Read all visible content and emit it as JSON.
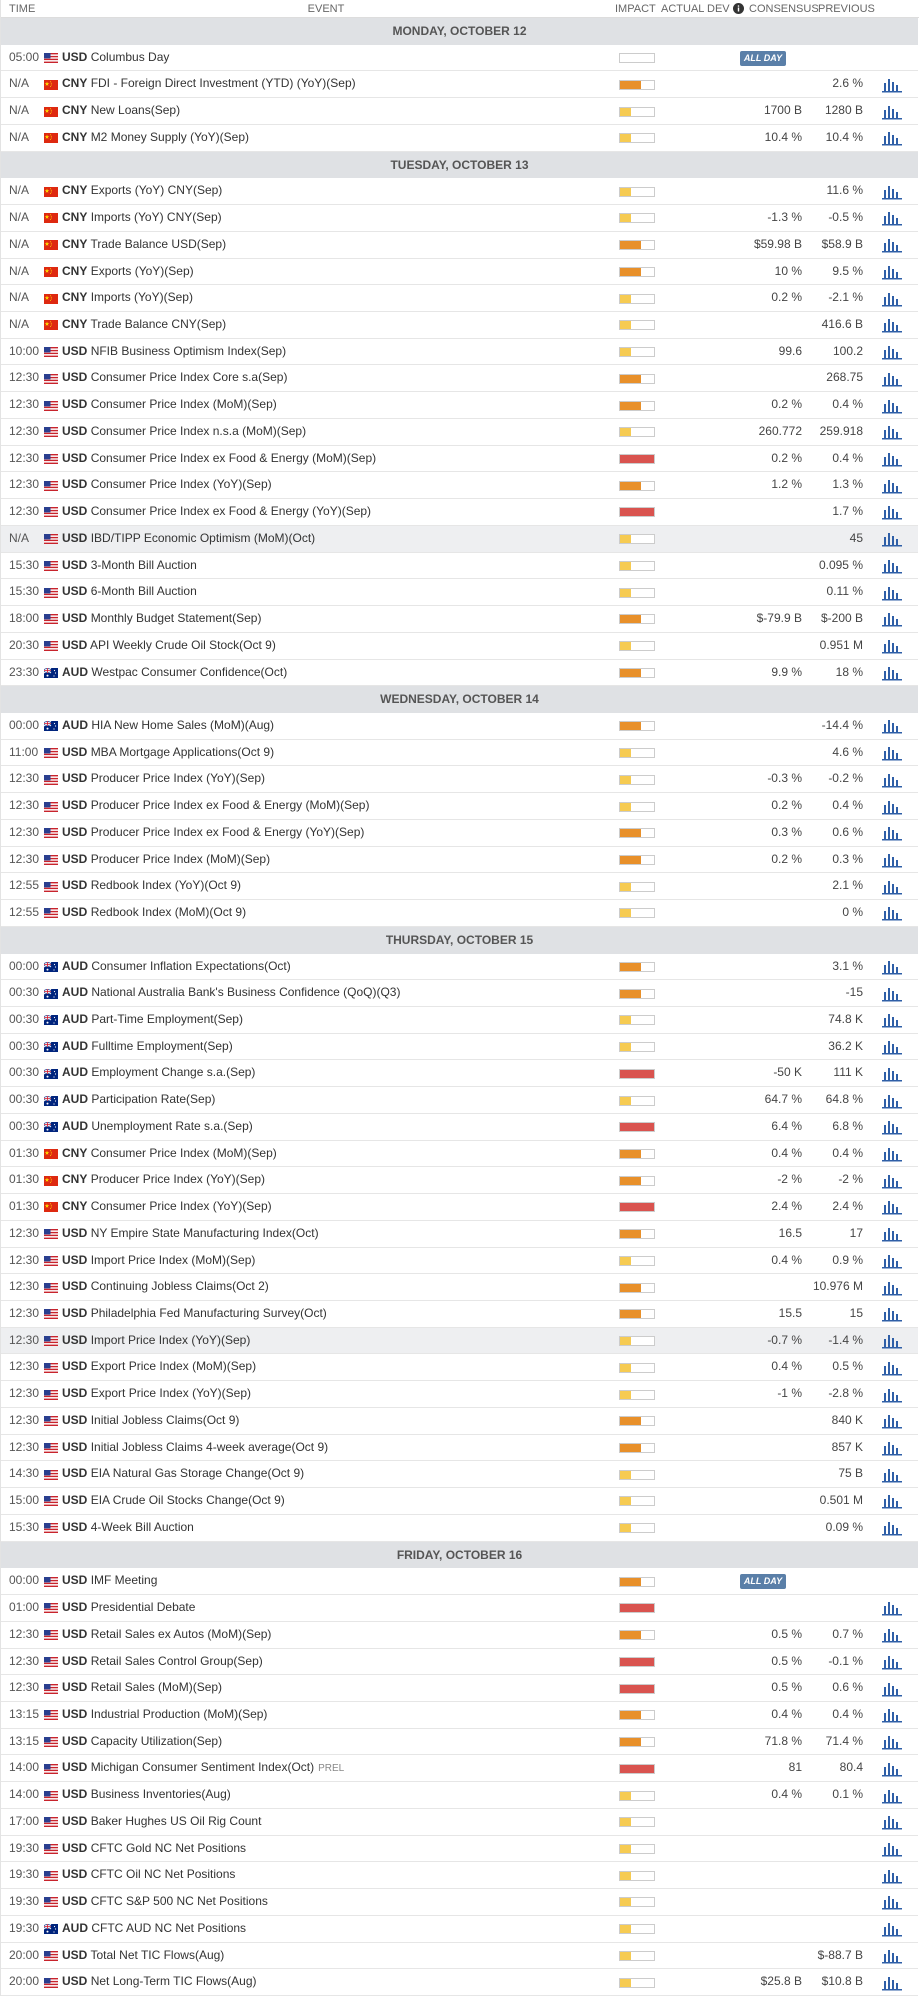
{
  "header": {
    "columns": [
      "TIME",
      "EVENT",
      "IMPACT",
      "ACTUAL",
      "DEV",
      "CONSENSUS",
      "PREVIOUS"
    ]
  },
  "days": [
    {
      "title": "MONDAY, OCTOBER 12",
      "events": [
        {
          "time": "05:00",
          "currency": "USD",
          "event": "Columbus Day",
          "impact": "none",
          "badge": "ALL DAY",
          "chart": false
        },
        {
          "time": "N/A",
          "currency": "CNY",
          "event": "FDI - Foreign Direct Investment (YTD) (YoY)(Sep)",
          "impact": "medium",
          "previous": "2.6 %"
        },
        {
          "time": "N/A",
          "currency": "CNY",
          "event": "New Loans(Sep)",
          "impact": "low",
          "consensus": "1700 B",
          "previous": "1280 B"
        },
        {
          "time": "N/A",
          "currency": "CNY",
          "event": "M2 Money Supply (YoY)(Sep)",
          "impact": "low",
          "consensus": "10.4 %",
          "previous": "10.4 %"
        }
      ]
    },
    {
      "title": "TUESDAY, OCTOBER 13",
      "events": [
        {
          "time": "N/A",
          "currency": "CNY",
          "event": "Exports (YoY) CNY(Sep)",
          "impact": "low",
          "previous": "11.6 %"
        },
        {
          "time": "N/A",
          "currency": "CNY",
          "event": "Imports (YoY) CNY(Sep)",
          "impact": "low",
          "consensus": "-1.3 %",
          "previous": "-0.5 %"
        },
        {
          "time": "N/A",
          "currency": "CNY",
          "event": "Trade Balance USD(Sep)",
          "impact": "medium",
          "consensus": "$59.98 B",
          "previous": "$58.9 B"
        },
        {
          "time": "N/A",
          "currency": "CNY",
          "event": "Exports (YoY)(Sep)",
          "impact": "medium",
          "consensus": "10 %",
          "previous": "9.5 %"
        },
        {
          "time": "N/A",
          "currency": "CNY",
          "event": "Imports (YoY)(Sep)",
          "impact": "low",
          "consensus": "0.2 %",
          "previous": "-2.1 %"
        },
        {
          "time": "N/A",
          "currency": "CNY",
          "event": "Trade Balance CNY(Sep)",
          "impact": "low",
          "previous": "416.6 B"
        },
        {
          "time": "10:00",
          "currency": "USD",
          "event": "NFIB Business Optimism Index(Sep)",
          "impact": "low",
          "consensus": "99.6",
          "previous": "100.2"
        },
        {
          "time": "12:30",
          "currency": "USD",
          "event": "Consumer Price Index Core s.a(Sep)",
          "impact": "medium",
          "previous": "268.75"
        },
        {
          "time": "12:30",
          "currency": "USD",
          "event": "Consumer Price Index (MoM)(Sep)",
          "impact": "medium",
          "consensus": "0.2 %",
          "previous": "0.4 %"
        },
        {
          "time": "12:30",
          "currency": "USD",
          "event": "Consumer Price Index n.s.a (MoM)(Sep)",
          "impact": "low",
          "consensus": "260.772",
          "previous": "259.918"
        },
        {
          "time": "12:30",
          "currency": "USD",
          "event": "Consumer Price Index ex Food & Energy (MoM)(Sep)",
          "impact": "high",
          "consensus": "0.2 %",
          "previous": "0.4 %"
        },
        {
          "time": "12:30",
          "currency": "USD",
          "event": "Consumer Price Index (YoY)(Sep)",
          "impact": "medium",
          "consensus": "1.2 %",
          "previous": "1.3 %"
        },
        {
          "time": "12:30",
          "currency": "USD",
          "event": "Consumer Price Index ex Food & Energy (YoY)(Sep)",
          "impact": "high",
          "previous": "1.7 %"
        },
        {
          "time": "N/A",
          "currency": "USD",
          "event": "IBD/TIPP Economic Optimism (MoM)(Oct)",
          "impact": "low",
          "previous": "45",
          "highlight": true
        },
        {
          "time": "15:30",
          "currency": "USD",
          "event": "3-Month Bill Auction",
          "impact": "low",
          "previous": "0.095 %"
        },
        {
          "time": "15:30",
          "currency": "USD",
          "event": "6-Month Bill Auction",
          "impact": "low",
          "previous": "0.11 %"
        },
        {
          "time": "18:00",
          "currency": "USD",
          "event": "Monthly Budget Statement(Sep)",
          "impact": "medium",
          "consensus": "$-79.9 B",
          "previous": "$-200 B"
        },
        {
          "time": "20:30",
          "currency": "USD",
          "event": "API Weekly Crude Oil Stock(Oct 9)",
          "impact": "low",
          "previous": "0.951 M"
        },
        {
          "time": "23:30",
          "currency": "AUD",
          "event": "Westpac Consumer Confidence(Oct)",
          "impact": "medium",
          "consensus": "9.9 %",
          "previous": "18 %"
        }
      ]
    },
    {
      "title": "WEDNESDAY, OCTOBER 14",
      "events": [
        {
          "time": "00:00",
          "currency": "AUD",
          "event": "HIA New Home Sales (MoM)(Aug)",
          "impact": "medium",
          "previous": "-14.4 %"
        },
        {
          "time": "11:00",
          "currency": "USD",
          "event": "MBA Mortgage Applications(Oct 9)",
          "impact": "low",
          "previous": "4.6 %"
        },
        {
          "time": "12:30",
          "currency": "USD",
          "event": "Producer Price Index (YoY)(Sep)",
          "impact": "low",
          "consensus": "-0.3 %",
          "previous": "-0.2 %"
        },
        {
          "time": "12:30",
          "currency": "USD",
          "event": "Producer Price Index ex Food & Energy (MoM)(Sep)",
          "impact": "low",
          "consensus": "0.2 %",
          "previous": "0.4 %"
        },
        {
          "time": "12:30",
          "currency": "USD",
          "event": "Producer Price Index ex Food & Energy (YoY)(Sep)",
          "impact": "medium",
          "consensus": "0.3 %",
          "previous": "0.6 %"
        },
        {
          "time": "12:30",
          "currency": "USD",
          "event": "Producer Price Index (MoM)(Sep)",
          "impact": "medium",
          "consensus": "0.2 %",
          "previous": "0.3 %"
        },
        {
          "time": "12:55",
          "currency": "USD",
          "event": "Redbook Index (YoY)(Oct 9)",
          "impact": "low",
          "previous": "2.1 %"
        },
        {
          "time": "12:55",
          "currency": "USD",
          "event": "Redbook Index (MoM)(Oct 9)",
          "impact": "low",
          "previous": "0 %"
        }
      ]
    },
    {
      "title": "THURSDAY, OCTOBER 15",
      "events": [
        {
          "time": "00:00",
          "currency": "AUD",
          "event": "Consumer Inflation Expectations(Oct)",
          "impact": "medium",
          "previous": "3.1 %"
        },
        {
          "time": "00:30",
          "currency": "AUD",
          "event": "National Australia Bank's Business Confidence (QoQ)(Q3)",
          "impact": "medium",
          "previous": "-15"
        },
        {
          "time": "00:30",
          "currency": "AUD",
          "event": "Part-Time Employment(Sep)",
          "impact": "low",
          "previous": "74.8 K"
        },
        {
          "time": "00:30",
          "currency": "AUD",
          "event": "Fulltime Employment(Sep)",
          "impact": "low",
          "previous": "36.2 K"
        },
        {
          "time": "00:30",
          "currency": "AUD",
          "event": "Employment Change s.a.(Sep)",
          "impact": "high",
          "consensus": "-50 K",
          "previous": "111 K"
        },
        {
          "time": "00:30",
          "currency": "AUD",
          "event": "Participation Rate(Sep)",
          "impact": "low",
          "consensus": "64.7 %",
          "previous": "64.8 %"
        },
        {
          "time": "00:30",
          "currency": "AUD",
          "event": "Unemployment Rate s.a.(Sep)",
          "impact": "high",
          "consensus": "6.4 %",
          "previous": "6.8 %"
        },
        {
          "time": "01:30",
          "currency": "CNY",
          "event": "Consumer Price Index (MoM)(Sep)",
          "impact": "medium",
          "consensus": "0.4 %",
          "previous": "0.4 %"
        },
        {
          "time": "01:30",
          "currency": "CNY",
          "event": "Producer Price Index (YoY)(Sep)",
          "impact": "medium",
          "consensus": "-2 %",
          "previous": "-2 %"
        },
        {
          "time": "01:30",
          "currency": "CNY",
          "event": "Consumer Price Index (YoY)(Sep)",
          "impact": "high",
          "consensus": "2.4 %",
          "previous": "2.4 %"
        },
        {
          "time": "12:30",
          "currency": "USD",
          "event": "NY Empire State Manufacturing Index(Oct)",
          "impact": "medium",
          "consensus": "16.5",
          "previous": "17"
        },
        {
          "time": "12:30",
          "currency": "USD",
          "event": "Import Price Index (MoM)(Sep)",
          "impact": "low",
          "consensus": "0.4 %",
          "previous": "0.9 %"
        },
        {
          "time": "12:30",
          "currency": "USD",
          "event": "Continuing Jobless Claims(Oct 2)",
          "impact": "medium",
          "previous": "10.976 M"
        },
        {
          "time": "12:30",
          "currency": "USD",
          "event": "Philadelphia Fed Manufacturing Survey(Oct)",
          "impact": "medium",
          "consensus": "15.5",
          "previous": "15"
        },
        {
          "time": "12:30",
          "currency": "USD",
          "event": "Import Price Index (YoY)(Sep)",
          "impact": "low",
          "consensus": "-0.7 %",
          "previous": "-1.4 %",
          "highlight": true
        },
        {
          "time": "12:30",
          "currency": "USD",
          "event": "Export Price Index (MoM)(Sep)",
          "impact": "low",
          "consensus": "0.4 %",
          "previous": "0.5 %"
        },
        {
          "time": "12:30",
          "currency": "USD",
          "event": "Export Price Index (YoY)(Sep)",
          "impact": "low",
          "consensus": "-1 %",
          "previous": "-2.8 %"
        },
        {
          "time": "12:30",
          "currency": "USD",
          "event": "Initial Jobless Claims(Oct 9)",
          "impact": "medium",
          "previous": "840 K"
        },
        {
          "time": "12:30",
          "currency": "USD",
          "event": "Initial Jobless Claims 4-week average(Oct 9)",
          "impact": "medium",
          "previous": "857 K"
        },
        {
          "time": "14:30",
          "currency": "USD",
          "event": "EIA Natural Gas Storage Change(Oct 9)",
          "impact": "low",
          "previous": "75 B"
        },
        {
          "time": "15:00",
          "currency": "USD",
          "event": "EIA Crude Oil Stocks Change(Oct 9)",
          "impact": "low",
          "previous": "0.501 M"
        },
        {
          "time": "15:30",
          "currency": "USD",
          "event": "4-Week Bill Auction",
          "impact": "low",
          "previous": "0.09 %"
        }
      ]
    },
    {
      "title": "FRIDAY, OCTOBER 16",
      "events": [
        {
          "time": "00:00",
          "currency": "USD",
          "event": "IMF Meeting",
          "impact": "medium",
          "badge": "ALL DAY",
          "chart": false
        },
        {
          "time": "01:00",
          "currency": "USD",
          "event": "Presidential Debate",
          "impact": "high"
        },
        {
          "time": "12:30",
          "currency": "USD",
          "event": "Retail Sales ex Autos (MoM)(Sep)",
          "impact": "medium",
          "consensus": "0.5 %",
          "previous": "0.7 %"
        },
        {
          "time": "12:30",
          "currency": "USD",
          "event": "Retail Sales Control Group(Sep)",
          "impact": "high",
          "consensus": "0.5 %",
          "previous": "-0.1 %"
        },
        {
          "time": "12:30",
          "currency": "USD",
          "event": "Retail Sales (MoM)(Sep)",
          "impact": "high",
          "consensus": "0.5 %",
          "previous": "0.6 %"
        },
        {
          "time": "13:15",
          "currency": "USD",
          "event": "Industrial Production (MoM)(Sep)",
          "impact": "medium",
          "consensus": "0.4 %",
          "previous": "0.4 %"
        },
        {
          "time": "13:15",
          "currency": "USD",
          "event": "Capacity Utilization(Sep)",
          "impact": "medium",
          "consensus": "71.8 %",
          "previous": "71.4 %"
        },
        {
          "time": "14:00",
          "currency": "USD",
          "event": "Michigan Consumer Sentiment Index(Oct)",
          "tag": "PREL",
          "impact": "high",
          "consensus": "81",
          "previous": "80.4"
        },
        {
          "time": "14:00",
          "currency": "USD",
          "event": "Business Inventories(Aug)",
          "impact": "low",
          "consensus": "0.4 %",
          "previous": "0.1 %"
        },
        {
          "time": "17:00",
          "currency": "USD",
          "event": "Baker Hughes US Oil Rig Count",
          "impact": "low"
        },
        {
          "time": "19:30",
          "currency": "USD",
          "event": "CFTC Gold NC Net Positions",
          "impact": "low"
        },
        {
          "time": "19:30",
          "currency": "USD",
          "event": "CFTC Oil NC Net Positions",
          "impact": "low"
        },
        {
          "time": "19:30",
          "currency": "USD",
          "event": "CFTC S&P 500 NC Net Positions",
          "impact": "low"
        },
        {
          "time": "19:30",
          "currency": "AUD",
          "event": "CFTC AUD NC Net Positions",
          "impact": "low"
        },
        {
          "time": "20:00",
          "currency": "USD",
          "event": "Total Net TIC Flows(Aug)",
          "impact": "low",
          "previous": "$-88.7 B"
        },
        {
          "time": "20:00",
          "currency": "USD",
          "event": "Net Long-Term TIC Flows(Aug)",
          "impact": "low",
          "consensus": "$25.8 B",
          "previous": "$10.8 B"
        }
      ]
    }
  ]
}
